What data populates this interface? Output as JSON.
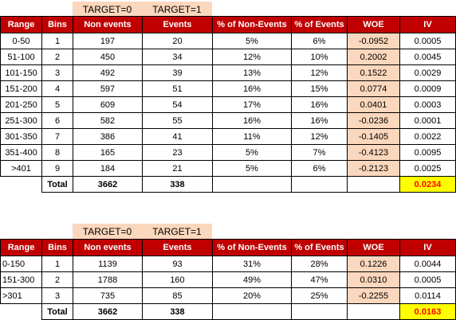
{
  "colors": {
    "header_bg": "#c00000",
    "header_text": "#ffffff",
    "target_bg": "#fad7bd",
    "woe_bg": "#fad7bd",
    "iv_total_bg": "#ffff00",
    "iv_total_text": "#ff0000"
  },
  "headers": [
    "Range",
    "Bins",
    "Non events",
    "Events",
    "% of Non-Events",
    "% of Events",
    "WOE",
    "IV"
  ],
  "table1": {
    "target0": "TARGET=0",
    "target1": "TARGET=1",
    "rows": [
      [
        "0-50",
        "1",
        "197",
        "20",
        "5%",
        "6%",
        "-0.0952",
        "0.0005"
      ],
      [
        "51-100",
        "2",
        "450",
        "34",
        "12%",
        "10%",
        "0.2002",
        "0.0045"
      ],
      [
        "101-150",
        "3",
        "492",
        "39",
        "13%",
        "12%",
        "0.1522",
        "0.0029"
      ],
      [
        "151-200",
        "4",
        "597",
        "51",
        "16%",
        "15%",
        "0.0774",
        "0.0009"
      ],
      [
        "201-250",
        "5",
        "609",
        "54",
        "17%",
        "16%",
        "0.0401",
        "0.0003"
      ],
      [
        "251-300",
        "6",
        "582",
        "55",
        "16%",
        "16%",
        "-0.0236",
        "0.0001"
      ],
      [
        "301-350",
        "7",
        "386",
        "41",
        "11%",
        "12%",
        "-0.1405",
        "0.0022"
      ],
      [
        "351-400",
        "8",
        "165",
        "23",
        "5%",
        "7%",
        "-0.4123",
        "0.0095"
      ],
      [
        ">401",
        "9",
        "184",
        "21",
        "5%",
        "6%",
        "-0.2123",
        "0.0025"
      ]
    ],
    "total": {
      "label": "Total",
      "non_events": "3662",
      "events": "338",
      "iv": "0.0234"
    }
  },
  "table2": {
    "target0": "TARGET=0",
    "target1": "TARGET=1",
    "rows": [
      [
        "0-150",
        "1",
        "1139",
        "93",
        "31%",
        "28%",
        "0.1226",
        "0.0044"
      ],
      [
        "151-300",
        "2",
        "1788",
        "160",
        "49%",
        "47%",
        "0.0310",
        "0.0005"
      ],
      [
        ">301",
        "3",
        "735",
        "85",
        "20%",
        "25%",
        "-0.2255",
        "0.0114"
      ]
    ],
    "total": {
      "label": "Total",
      "non_events": "3662",
      "events": "338",
      "iv": "0.0163"
    }
  }
}
